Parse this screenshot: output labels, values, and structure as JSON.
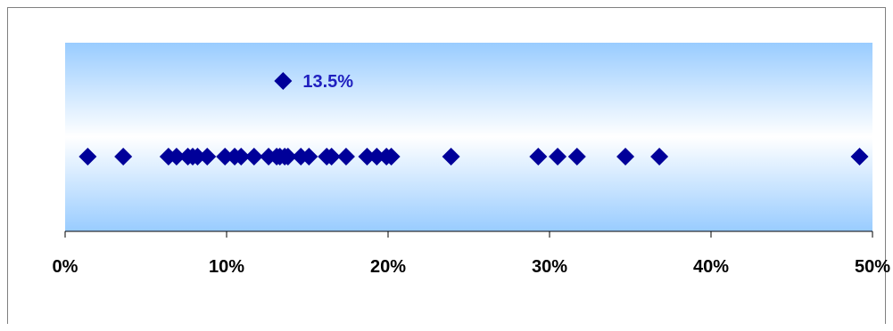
{
  "chart_data": {
    "type": "scatter",
    "title": "",
    "xlabel": "",
    "ylabel": "",
    "xlim": [
      0,
      50
    ],
    "x_ticks": [
      0,
      10,
      20,
      30,
      40,
      50
    ],
    "x_tick_labels": [
      "0%",
      "10%",
      "20%",
      "30%",
      "40%",
      "50%"
    ],
    "grid": false,
    "series": [
      {
        "values": [
          1.4,
          3.6,
          6.4,
          6.9,
          7.6,
          7.9,
          8.2,
          8.8,
          9.9,
          10.5,
          10.9,
          11.7,
          12.6,
          13.1,
          13.3,
          13.6,
          13.8,
          14.6,
          15.1,
          16.2,
          16.5,
          17.4,
          18.7,
          19.3,
          19.9,
          20.2,
          23.9,
          29.3,
          30.5,
          31.7,
          34.7,
          36.8,
          49.2
        ]
      }
    ],
    "highlight": {
      "value": 13.5,
      "label": "13.5%"
    },
    "colors": {
      "marker": "#000099",
      "highlight_label": "#1f1fbf",
      "background_edge": "#99ccff",
      "background_center": "#ffffff"
    }
  }
}
